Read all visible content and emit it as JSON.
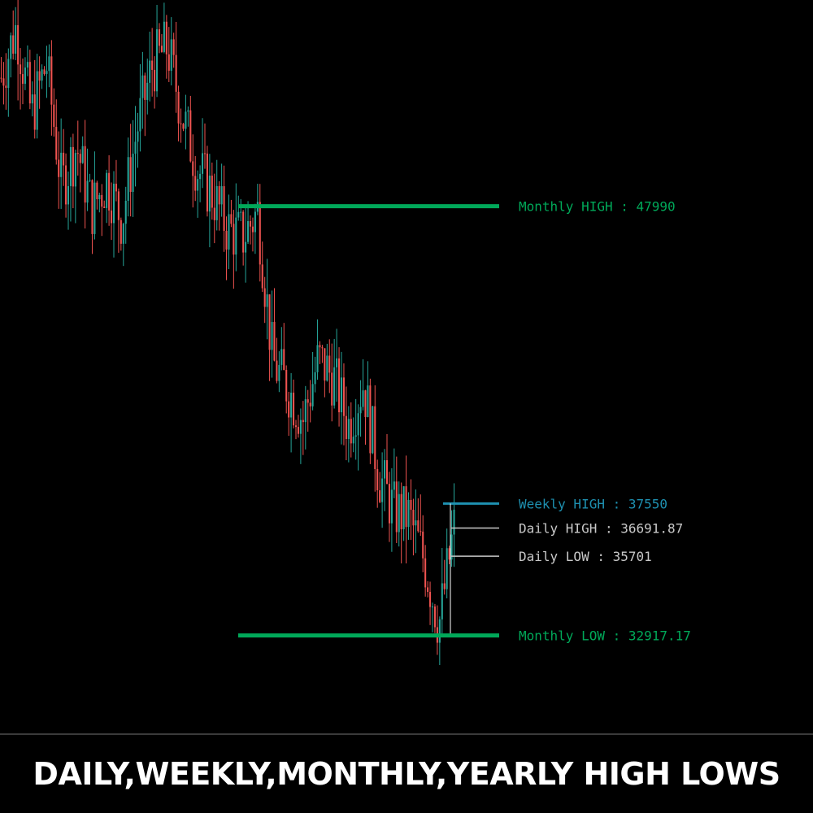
{
  "banner": {
    "title": "DAILY,WEEKLY,MONTHLY,YEARLY HIGH LOWS"
  },
  "colors": {
    "up": "#26a69a",
    "down": "#ef5350",
    "background": "#000000"
  },
  "chart_data": {
    "type": "candlestick",
    "title": "",
    "xlabel": "",
    "ylabel": "",
    "grid": false,
    "ylim": [
      29540,
      55230
    ],
    "series_description": "price candles (green up, red down)",
    "anchors": [
      52500,
      54300,
      51200,
      53000,
      48700,
      50100,
      47900,
      48900,
      47500,
      50700,
      52900,
      53600,
      51200,
      49300,
      48400,
      47200,
      46900,
      47800,
      42500,
      41600,
      40500,
      42600,
      42000,
      40300,
      41800,
      38600,
      37300,
      37100,
      35600,
      33300,
      36700
    ],
    "levels": [
      {
        "key": "monthly_high",
        "label": "Monthly HIGH : 47990",
        "value": 47990,
        "color": "#00a859"
      },
      {
        "key": "weekly_high",
        "label": "Weekly HIGH : 37550",
        "value": 37550,
        "color": "#1e90b0"
      },
      {
        "key": "daily_high",
        "label": "Daily HIGH : 36691.87",
        "value": 36691.87,
        "color": "#c8c8c8"
      },
      {
        "key": "daily_low",
        "label": "Daily LOW : 35701",
        "value": 35701,
        "color": "#c8c8c8"
      },
      {
        "key": "monthly_low",
        "label": "Monthly LOW : 32917.17",
        "value": 32917.17,
        "color": "#00a859"
      }
    ]
  }
}
